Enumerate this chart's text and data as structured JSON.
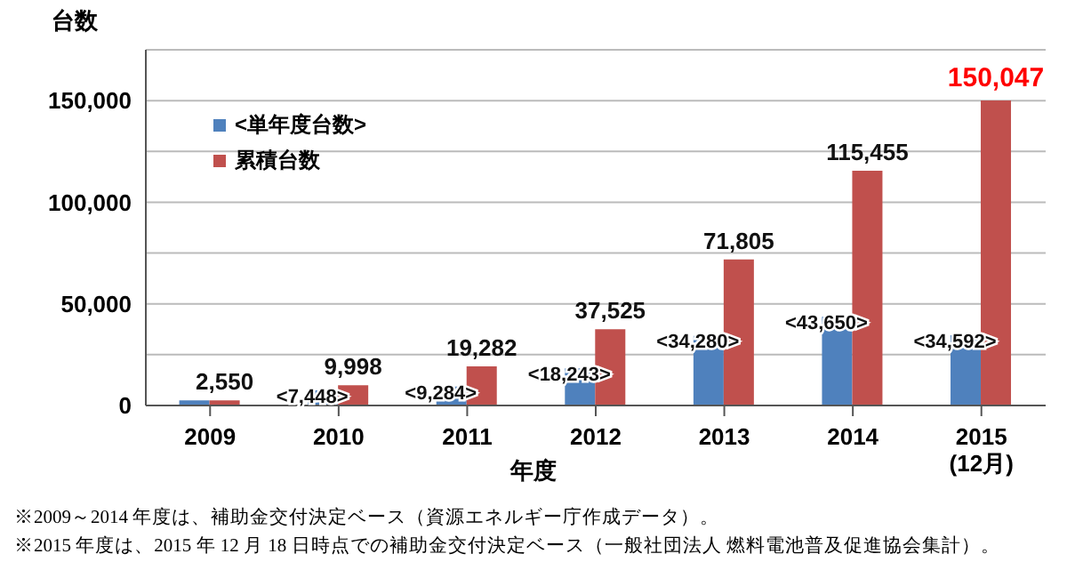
{
  "chart_data": {
    "type": "bar",
    "ylabel": "台数",
    "xlabel": "年度",
    "categories": [
      "2009",
      "2010",
      "2011",
      "2012",
      "2013",
      "2014",
      "2015\n(12月)"
    ],
    "series": [
      {
        "name": "<単年度台数>",
        "color": "#4f81bd",
        "values": [
          2550,
          7448,
          9284,
          18243,
          34280,
          43650,
          34592
        ],
        "value_labels": [
          null,
          "<7,448>",
          "<9,284>",
          "<18,243>",
          "<34,280>",
          "<43,650>",
          "<34,592>"
        ]
      },
      {
        "name": "累積台数",
        "color": "#c0504d",
        "values": [
          2550,
          9998,
          19282,
          37525,
          71805,
          115455,
          150047
        ],
        "value_labels": [
          "2,550",
          "9,998",
          "19,282",
          "37,525",
          "71,805",
          "115,455",
          null
        ]
      }
    ],
    "ylim": [
      0,
      175000
    ],
    "yticks": [
      0,
      {
        "value": 25000,
        "label": null
      },
      {
        "value": 50000,
        "label": "50,000"
      },
      {
        "value": 75000,
        "label": null
      },
      {
        "value": 100000,
        "label": "100,000"
      },
      {
        "value": 125000,
        "label": null
      },
      {
        "value": 150000,
        "label": "150,000"
      },
      {
        "value": 175000,
        "label": null
      }
    ],
    "grid": "y",
    "legend": "top left",
    "annotations": [
      {
        "text": "150,047",
        "x": "2015\n(12月)",
        "y": 150047
      },
      "※2009～2014 年度は、補助金交付決定ベース（資源エネルギー庁作成データ）。",
      "※2015 年度は、2015 年 12 月 18 日時点での補助金交付決定ベース（一般社団法人 燃料電池普及促進協会集計）。"
    ]
  }
}
